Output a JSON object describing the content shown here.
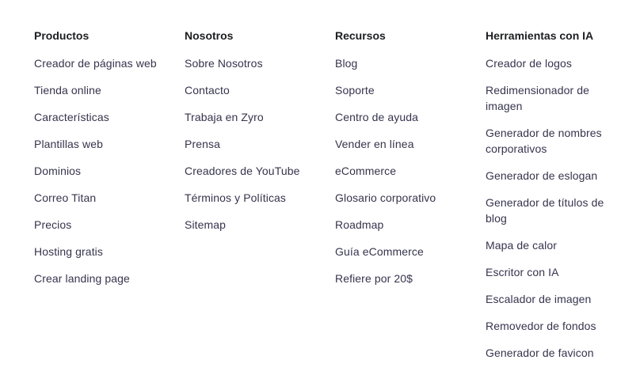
{
  "footer": {
    "columns": [
      {
        "title": "Productos",
        "links": [
          "Creador de páginas web",
          "Tienda online",
          "Características",
          "Plantillas web",
          "Dominios",
          "Correo Titan",
          "Precios",
          "Hosting gratis",
          "Crear landing page"
        ]
      },
      {
        "title": "Nosotros",
        "links": [
          "Sobre Nosotros",
          "Contacto",
          "Trabaja en Zyro",
          "Prensa",
          "Creadores de YouTube",
          "Términos y Políticas",
          "Sitemap"
        ]
      },
      {
        "title": "Recursos",
        "links": [
          "Blog",
          "Soporte",
          "Centro de ayuda",
          "Vender en línea",
          "eCommerce",
          "Glosario corporativo",
          "Roadmap",
          "Guía eCommerce",
          "Refiere por 20$"
        ]
      },
      {
        "title": "Herramientas con IA",
        "links": [
          "Creador de logos",
          "Redimensionador de imagen",
          "Generador de nombres corporativos",
          "Generador de eslogan",
          "Generador de títulos de blog",
          "Mapa de calor",
          "Escritor con IA",
          "Escalador de imagen",
          "Removedor de fondos",
          "Generador de favicon"
        ]
      }
    ]
  }
}
